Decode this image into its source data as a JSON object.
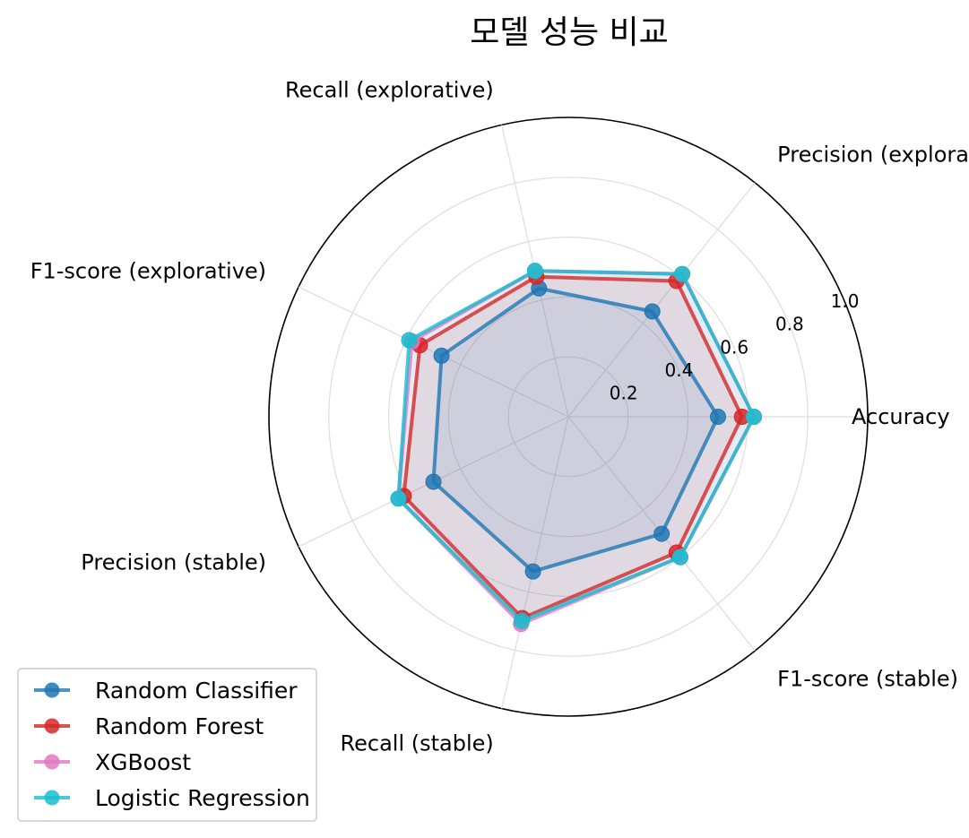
{
  "chart_data": {
    "type": "radar",
    "title": "모델 성능 비교",
    "axes": [
      "Accuracy",
      "Precision (explorative)",
      "Recall (explorative)",
      "F1-score (explorative)",
      "Precision (stable)",
      "Recall (stable)",
      "F1-score (stable)"
    ],
    "rlim": [
      0,
      1.0
    ],
    "rticks": [
      0.2,
      0.4,
      0.6,
      0.8,
      1.0
    ],
    "rtick_labels": [
      "0.2",
      "0.4",
      "0.6",
      "0.8",
      "1.0"
    ],
    "grid": true,
    "legend_position": "bottom-left",
    "series": [
      {
        "name": "Random Classifier",
        "color": "#1f77b4",
        "values": [
          0.5,
          0.45,
          0.44,
          0.47,
          0.5,
          0.53,
          0.5
        ]
      },
      {
        "name": "Random Forest",
        "color": "#d62728",
        "values": [
          0.58,
          0.58,
          0.48,
          0.55,
          0.61,
          0.69,
          0.58
        ]
      },
      {
        "name": "XGBoost",
        "color": "#e377c2",
        "values": [
          0.62,
          0.61,
          0.5,
          0.58,
          0.63,
          0.71,
          0.6
        ]
      },
      {
        "name": "Logistic Regression",
        "color": "#17becf",
        "values": [
          0.62,
          0.61,
          0.5,
          0.59,
          0.63,
          0.7,
          0.6
        ]
      }
    ]
  }
}
